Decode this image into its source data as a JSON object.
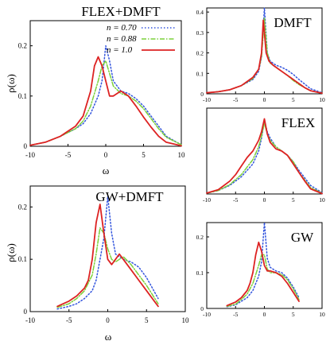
{
  "colors": {
    "n070": "#3355dd",
    "n088": "#7cd03a",
    "n10": "#dd2222",
    "axis": "#000000"
  },
  "ylabel_main": "ρ(ω)",
  "xlabel_main": "ω",
  "legend": [
    {
      "label": "n = 0.70",
      "style": "dotted",
      "color": "#3355dd"
    },
    {
      "label": "n = 0.88",
      "style": "dashdot",
      "color": "#7cd03a"
    },
    {
      "label": "n = 1.0",
      "style": "solid",
      "color": "#dd2222"
    }
  ],
  "chart_data": [
    {
      "id": "flex-dmft",
      "type": "line",
      "title": "FLEX+DMFT",
      "xlabel": "ω",
      "ylabel": "ρ(ω)",
      "xlim": [
        -10,
        10
      ],
      "ylim": [
        0,
        0.25
      ],
      "xticks": [
        -10,
        -5,
        0,
        5,
        10
      ],
      "yticks": [
        0,
        0.1,
        0.2
      ],
      "xtick_labels": [
        "-10",
        "-5",
        "0",
        "5",
        "10"
      ],
      "ytick_labels": [
        "0",
        "0.1",
        "0.2"
      ],
      "series": [
        {
          "name": "n = 0.70",
          "color": "#3355dd",
          "style": "dotted",
          "x": [
            -10,
            -8,
            -6,
            -4,
            -3,
            -2,
            -1,
            -0.5,
            0,
            0.5,
            1,
            2,
            3,
            4,
            5,
            6,
            7,
            8,
            10
          ],
          "y": [
            0.002,
            0.008,
            0.02,
            0.035,
            0.045,
            0.065,
            0.1,
            0.13,
            0.2,
            0.17,
            0.13,
            0.11,
            0.105,
            0.095,
            0.08,
            0.06,
            0.04,
            0.02,
            0.003
          ]
        },
        {
          "name": "n = 0.88",
          "color": "#7cd03a",
          "style": "dashdot",
          "x": [
            -10,
            -8,
            -6,
            -4,
            -3,
            -2,
            -1,
            -0.5,
            0,
            1,
            2,
            3,
            4,
            5,
            6,
            7,
            8,
            10
          ],
          "y": [
            0.002,
            0.008,
            0.02,
            0.035,
            0.05,
            0.08,
            0.13,
            0.16,
            0.17,
            0.12,
            0.105,
            0.1,
            0.09,
            0.075,
            0.055,
            0.035,
            0.018,
            0.003
          ]
        },
        {
          "name": "n = 1.0",
          "color": "#dd2222",
          "style": "solid",
          "x": [
            -10,
            -8,
            -6,
            -5,
            -4,
            -3,
            -2,
            -1.5,
            -1,
            -0.5,
            0,
            0.5,
            1,
            2,
            3,
            4,
            5,
            6,
            7,
            8,
            10
          ],
          "y": [
            0.002,
            0.008,
            0.02,
            0.03,
            0.04,
            0.06,
            0.11,
            0.16,
            0.178,
            0.16,
            0.13,
            0.1,
            0.1,
            0.11,
            0.1,
            0.08,
            0.058,
            0.038,
            0.02,
            0.008,
            0.001
          ]
        }
      ]
    },
    {
      "id": "dmft",
      "type": "line",
      "title": "DMFT",
      "xlim": [
        -10,
        10
      ],
      "ylim": [
        0,
        0.42
      ],
      "xticks": [
        -10,
        -5,
        0,
        5,
        10
      ],
      "yticks": [
        0,
        0.1,
        0.2,
        0.3,
        0.4
      ],
      "xtick_labels": [
        "-10",
        "-5",
        "0",
        "5",
        "10"
      ],
      "ytick_labels": [
        "0",
        "0.1",
        "0.2",
        "0.3",
        "0.4"
      ],
      "series": [
        {
          "name": "n = 0.70",
          "color": "#3355dd",
          "style": "dotted",
          "x": [
            -10,
            -8,
            -6,
            -4,
            -2,
            -1,
            -0.5,
            0,
            0.5,
            1,
            2,
            3,
            4,
            5,
            6,
            8,
            10
          ],
          "y": [
            0.005,
            0.01,
            0.02,
            0.04,
            0.07,
            0.11,
            0.18,
            0.42,
            0.2,
            0.16,
            0.14,
            0.13,
            0.115,
            0.095,
            0.07,
            0.025,
            0.005
          ]
        },
        {
          "name": "n = 0.88",
          "color": "#7cd03a",
          "style": "dashdot",
          "x": [
            -10,
            -8,
            -6,
            -4,
            -2,
            -1,
            -0.5,
            0,
            0.5,
            1,
            2,
            3,
            4,
            5,
            6,
            8,
            10
          ],
          "y": [
            0.005,
            0.01,
            0.02,
            0.04,
            0.075,
            0.12,
            0.18,
            0.37,
            0.2,
            0.15,
            0.13,
            0.11,
            0.09,
            0.065,
            0.045,
            0.015,
            0.003
          ]
        },
        {
          "name": "n = 1.0",
          "color": "#dd2222",
          "style": "solid",
          "x": [
            -10,
            -8,
            -6,
            -4,
            -2,
            -1,
            -0.5,
            -0.2,
            0,
            0.3,
            0.8,
            1.5,
            2.5,
            3.5,
            4.5,
            5.5,
            7,
            8,
            10
          ],
          "y": [
            0.005,
            0.01,
            0.02,
            0.04,
            0.08,
            0.12,
            0.2,
            0.36,
            0.3,
            0.2,
            0.16,
            0.14,
            0.12,
            0.1,
            0.08,
            0.06,
            0.03,
            0.015,
            0.003
          ]
        }
      ]
    },
    {
      "id": "flex",
      "type": "line",
      "title": "FLEX",
      "xlim": [
        -10,
        10
      ],
      "ylim": [
        0,
        0.2
      ],
      "xticks": [
        -10,
        -5,
        0,
        5,
        10
      ],
      "yticks": [],
      "xtick_labels": [
        "-10",
        "-5",
        "0",
        "5",
        "10"
      ],
      "ytick_labels": [],
      "series": [
        {
          "name": "n = 0.70",
          "color": "#3355dd",
          "style": "dotted",
          "x": [
            -10,
            -8,
            -6,
            -4,
            -2,
            -1,
            -0.5,
            0,
            0.5,
            1,
            2,
            3,
            4,
            5,
            6,
            8,
            10
          ],
          "y": [
            0.002,
            0.008,
            0.02,
            0.04,
            0.07,
            0.1,
            0.13,
            0.17,
            0.145,
            0.13,
            0.11,
            0.1,
            0.09,
            0.075,
            0.055,
            0.02,
            0.003
          ]
        },
        {
          "name": "n = 0.88",
          "color": "#7cd03a",
          "style": "dashdot",
          "x": [
            -10,
            -8,
            -6,
            -4,
            -2,
            -1,
            -0.5,
            0,
            0.5,
            1,
            2,
            3,
            4,
            5,
            6,
            8,
            10
          ],
          "y": [
            0.002,
            0.008,
            0.022,
            0.045,
            0.08,
            0.11,
            0.135,
            0.165,
            0.14,
            0.125,
            0.11,
            0.1,
            0.09,
            0.075,
            0.05,
            0.015,
            0.002
          ]
        },
        {
          "name": "n = 1.0",
          "color": "#dd2222",
          "style": "solid",
          "x": [
            -10,
            -8,
            -6,
            -5,
            -4,
            -3,
            -2,
            -1,
            -0.5,
            0,
            0.5,
            1,
            2,
            3,
            4,
            5,
            6,
            7,
            8,
            10
          ],
          "y": [
            0.002,
            0.01,
            0.03,
            0.045,
            0.065,
            0.085,
            0.1,
            0.125,
            0.145,
            0.175,
            0.14,
            0.12,
            0.105,
            0.1,
            0.09,
            0.07,
            0.05,
            0.03,
            0.012,
            0.001
          ]
        }
      ]
    },
    {
      "id": "gw-dmft",
      "type": "line",
      "title": "GW+DMFT",
      "xlabel": "ω",
      "ylabel": "ρ(ω)",
      "xlim": [
        -10,
        10
      ],
      "ylim": [
        0,
        0.24
      ],
      "xticks": [
        -10,
        -5,
        0,
        5,
        10
      ],
      "yticks": [
        0,
        0.1,
        0.2
      ],
      "xtick_labels": [
        "-10",
        "-5",
        "0",
        "5",
        "10"
      ],
      "ytick_labels": [
        "0",
        "0.1",
        "0.2"
      ],
      "series": [
        {
          "name": "n = 0.70",
          "color": "#3355dd",
          "style": "dotted",
          "x": [
            -6.5,
            -5,
            -4,
            -3,
            -2,
            -1.5,
            -1,
            -0.5,
            0,
            0.5,
            1,
            2,
            3,
            4,
            5,
            6.5
          ],
          "y": [
            0.005,
            0.01,
            0.015,
            0.025,
            0.04,
            0.06,
            0.1,
            0.14,
            0.22,
            0.15,
            0.11,
            0.1,
            0.095,
            0.085,
            0.065,
            0.025
          ]
        },
        {
          "name": "n = 0.88",
          "color": "#7cd03a",
          "style": "dashdot",
          "x": [
            -6.5,
            -5,
            -4,
            -3,
            -2,
            -1.5,
            -1,
            -0.5,
            0,
            0.5,
            1,
            2,
            3,
            4,
            5,
            6.5
          ],
          "y": [
            0.008,
            0.015,
            0.025,
            0.04,
            0.07,
            0.11,
            0.16,
            0.15,
            0.12,
            0.1,
            0.095,
            0.105,
            0.09,
            0.07,
            0.05,
            0.015
          ]
        },
        {
          "name": "n = 1.0",
          "color": "#dd2222",
          "style": "solid",
          "x": [
            -6.5,
            -5,
            -4,
            -3,
            -2.5,
            -2,
            -1.5,
            -1,
            -0.5,
            0,
            0.5,
            1,
            1.5,
            2,
            3,
            4,
            5,
            6.5
          ],
          "y": [
            0.01,
            0.02,
            0.03,
            0.045,
            0.06,
            0.1,
            0.17,
            0.205,
            0.15,
            0.1,
            0.09,
            0.1,
            0.11,
            0.1,
            0.08,
            0.06,
            0.04,
            0.01
          ]
        }
      ]
    },
    {
      "id": "gw",
      "type": "line",
      "title": "GW",
      "xlim": [
        -10,
        10
      ],
      "ylim": [
        0,
        0.24
      ],
      "xticks": [
        -10,
        -5,
        0,
        5,
        10
      ],
      "yticks": [
        0,
        0.1,
        0.2
      ],
      "xtick_labels": [
        "-10",
        "-5",
        "0",
        "5",
        "10"
      ],
      "ytick_labels": [
        "0",
        "0.1",
        "0.2"
      ],
      "series": [
        {
          "name": "n = 0.70",
          "color": "#3355dd",
          "style": "dotted",
          "x": [
            -6.5,
            -5,
            -4,
            -3,
            -2,
            -1,
            -0.5,
            0,
            0.5,
            1,
            2,
            3,
            4,
            5,
            6
          ],
          "y": [
            0.005,
            0.01,
            0.02,
            0.03,
            0.05,
            0.09,
            0.13,
            0.24,
            0.14,
            0.115,
            0.105,
            0.1,
            0.085,
            0.06,
            0.03
          ]
        },
        {
          "name": "n = 0.88",
          "color": "#7cd03a",
          "style": "dashdot",
          "x": [
            -6.5,
            -5,
            -4,
            -3,
            -2,
            -1,
            -0.5,
            0,
            0.5,
            1,
            2,
            3,
            4,
            5,
            6
          ],
          "y": [
            0.006,
            0.012,
            0.025,
            0.04,
            0.07,
            0.12,
            0.15,
            0.15,
            0.11,
            0.1,
            0.1,
            0.095,
            0.08,
            0.055,
            0.025
          ]
        },
        {
          "name": "n = 1.0",
          "color": "#dd2222",
          "style": "solid",
          "x": [
            -6.5,
            -5,
            -4,
            -3,
            -2.5,
            -2,
            -1.5,
            -1,
            -0.5,
            0,
            0.5,
            1,
            2,
            3,
            4,
            5,
            6
          ],
          "y": [
            0.008,
            0.018,
            0.03,
            0.05,
            0.07,
            0.1,
            0.15,
            0.185,
            0.16,
            0.12,
            0.105,
            0.105,
            0.1,
            0.09,
            0.07,
            0.045,
            0.02
          ]
        }
      ]
    }
  ]
}
